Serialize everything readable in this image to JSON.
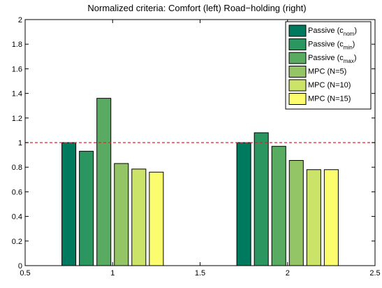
{
  "chart_data": {
    "type": "bar",
    "title": "Normalized criteria: Comfort (left) Road−holding (right)",
    "xlabel": "",
    "ylabel": "",
    "xlim": [
      0.5,
      2.5
    ],
    "ylim": [
      0,
      2
    ],
    "xticks": [
      "0.5",
      "1",
      "1.5",
      "2",
      "2.5"
    ],
    "xtick_values": [
      0.5,
      1,
      1.5,
      2,
      2.5
    ],
    "yticks": [
      "0",
      "0.2",
      "0.4",
      "0.6",
      "0.8",
      "1",
      "1.2",
      "1.4",
      "1.6",
      "1.8",
      "2"
    ],
    "ytick_values": [
      0,
      0.2,
      0.4,
      0.6,
      0.8,
      1,
      1.2,
      1.4,
      1.6,
      1.8,
      2
    ],
    "grid": false,
    "legend_position": "top-right",
    "group_centers": [
      1,
      2
    ],
    "bar_width": 0.1,
    "reference_line": {
      "y": 1,
      "color": "#e8202a",
      "style": "dashed"
    },
    "series": [
      {
        "name": "Passive (c",
        "subscript": "nom",
        "suffix": ")",
        "color": "#007a5e",
        "values": [
          1.0,
          1.0
        ]
      },
      {
        "name": "Passive (c",
        "subscript": "min",
        "suffix": ")",
        "color": "#2c9660",
        "values": [
          0.93,
          1.08
        ]
      },
      {
        "name": "Passive (c",
        "subscript": "max",
        "suffix": ")",
        "color": "#5aab62",
        "values": [
          1.36,
          0.97
        ]
      },
      {
        "name": "MPC (N=5)",
        "subscript": "",
        "suffix": "",
        "color": "#93c465",
        "values": [
          0.83,
          0.855
        ]
      },
      {
        "name": "MPC (N=10)",
        "subscript": "",
        "suffix": "",
        "color": "#cce36a",
        "values": [
          0.785,
          0.78
        ]
      },
      {
        "name": "MPC (N=15)",
        "subscript": "",
        "suffix": "",
        "color": "#fbfc6e",
        "values": [
          0.76,
          0.78
        ]
      }
    ]
  }
}
